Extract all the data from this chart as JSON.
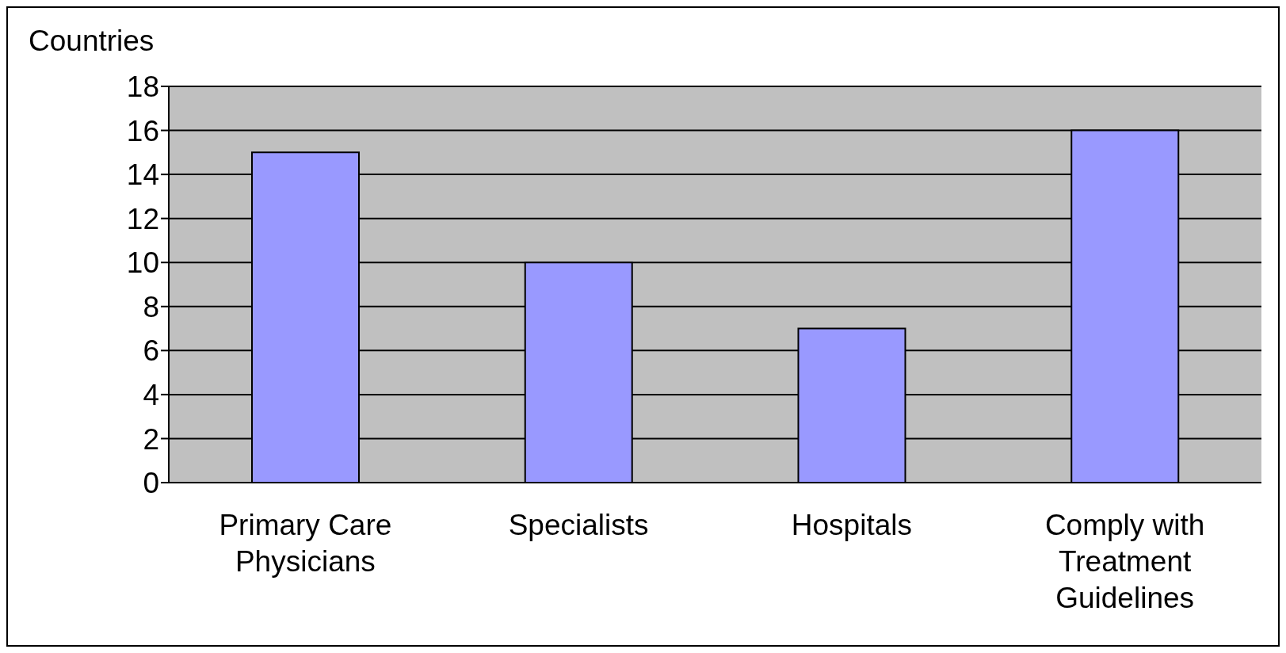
{
  "chart_data": {
    "type": "bar",
    "ylabel": "Countries",
    "categories": [
      "Primary Care Physicians",
      "Specialists",
      "Hospitals",
      "Comply with Treatment Guidelines"
    ],
    "values": [
      15,
      10,
      7,
      16
    ],
    "color": "#9999ff",
    "ylim": [
      0,
      18
    ],
    "yticks": [
      0,
      2,
      4,
      6,
      8,
      10,
      12,
      14,
      16,
      18
    ],
    "grid": "y",
    "legend": false
  }
}
